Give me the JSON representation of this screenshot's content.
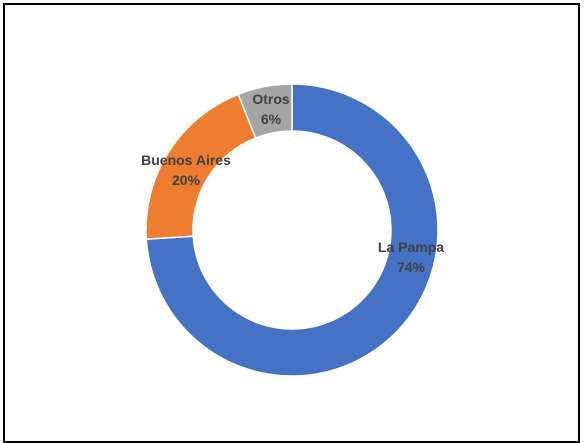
{
  "chart_data": {
    "type": "pie",
    "variant": "donut",
    "categories": [
      "La Pampa",
      "Buenos Aires",
      "Otros"
    ],
    "values": [
      74,
      20,
      6
    ],
    "unit": "%",
    "value_labels": [
      "74%",
      "20%",
      "6%"
    ],
    "colors": [
      "#4472C4",
      "#ED7D31",
      "#A5A5A5"
    ],
    "label_color": "#404040",
    "legend": "none",
    "title": ""
  }
}
